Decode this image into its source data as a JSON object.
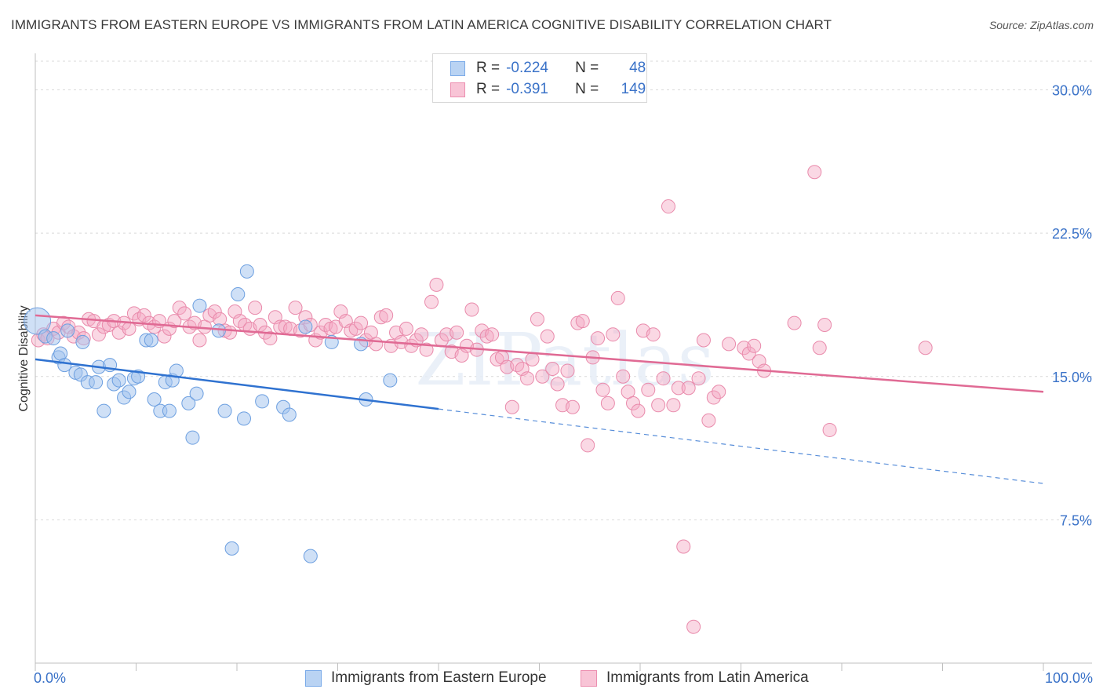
{
  "title": "IMMIGRANTS FROM EASTERN EUROPE VS IMMIGRANTS FROM LATIN AMERICA COGNITIVE DISABILITY CORRELATION CHART",
  "source": "Source: ZipAtlas.com",
  "watermark": "ZIPatlas",
  "legend": {
    "r_label": "R =",
    "n_label": "N =",
    "series": [
      {
        "r": "-0.224",
        "n": "48",
        "color": "#7aaae8",
        "fill": "#b9d3f3"
      },
      {
        "r": "-0.391",
        "n": "149",
        "color": "#ec8fb0",
        "fill": "#f8c4d6"
      }
    ]
  },
  "colors": {
    "blue_line": "#2f72d0",
    "pink_line": "#e06a94",
    "axis_text": "#3a72c8",
    "grid": "#d9d9d9"
  },
  "chart_data": {
    "type": "scatter",
    "xlabel": "",
    "ylabel": "Cognitive Disability",
    "xlim": [
      0,
      100
    ],
    "ylim": [
      0,
      31.5
    ],
    "x_tick_labels": [
      "0.0%",
      "100.0%"
    ],
    "y_ticks": [
      7.5,
      15.0,
      22.5,
      30.0
    ],
    "y_tick_labels": [
      "7.5%",
      "15.0%",
      "22.5%",
      "30.0%"
    ],
    "series": [
      {
        "name": "Immigrants from Eastern Europe",
        "trend": {
          "x": [
            0,
            40
          ],
          "y": [
            15.9,
            13.3
          ],
          "dashed_to_x": 100,
          "dashed_end_y": 9.4
        },
        "points": [
          [
            0.2,
            17.9
          ],
          [
            1.0,
            17.1
          ],
          [
            1.8,
            17.0
          ],
          [
            2.3,
            16.0
          ],
          [
            2.5,
            16.2
          ],
          [
            2.9,
            15.6
          ],
          [
            3.2,
            17.4
          ],
          [
            4.0,
            15.2
          ],
          [
            4.5,
            15.1
          ],
          [
            4.7,
            16.8
          ],
          [
            5.2,
            14.7
          ],
          [
            6.0,
            14.7
          ],
          [
            6.3,
            15.5
          ],
          [
            6.8,
            13.2
          ],
          [
            7.4,
            15.6
          ],
          [
            7.8,
            14.6
          ],
          [
            8.3,
            14.8
          ],
          [
            8.8,
            13.9
          ],
          [
            9.3,
            14.2
          ],
          [
            9.8,
            14.9
          ],
          [
            10.2,
            15.0
          ],
          [
            11.0,
            16.9
          ],
          [
            11.5,
            16.9
          ],
          [
            11.8,
            13.8
          ],
          [
            12.4,
            13.2
          ],
          [
            12.9,
            14.7
          ],
          [
            13.3,
            13.2
          ],
          [
            13.6,
            14.8
          ],
          [
            14.0,
            15.3
          ],
          [
            15.2,
            13.6
          ],
          [
            15.6,
            11.8
          ],
          [
            16.0,
            14.1
          ],
          [
            16.3,
            18.7
          ],
          [
            18.2,
            17.4
          ],
          [
            18.8,
            13.2
          ],
          [
            19.5,
            6.0
          ],
          [
            20.1,
            19.3
          ],
          [
            20.7,
            12.8
          ],
          [
            21.0,
            20.5
          ],
          [
            22.5,
            13.7
          ],
          [
            24.6,
            13.4
          ],
          [
            25.2,
            13.0
          ],
          [
            26.8,
            17.6
          ],
          [
            27.3,
            5.6
          ],
          [
            29.4,
            16.8
          ],
          [
            32.3,
            16.7
          ],
          [
            32.8,
            13.8
          ],
          [
            35.2,
            14.8
          ]
        ]
      },
      {
        "name": "Immigrants from Latin America",
        "trend": {
          "x": [
            0,
            100
          ],
          "y": [
            18.2,
            14.2
          ]
        },
        "points": [
          [
            0.3,
            16.9
          ],
          [
            0.8,
            17.2
          ],
          [
            1.2,
            17.0
          ],
          [
            1.8,
            17.5
          ],
          [
            2.3,
            17.3
          ],
          [
            2.8,
            17.8
          ],
          [
            3.3,
            17.6
          ],
          [
            3.8,
            17.1
          ],
          [
            4.3,
            17.3
          ],
          [
            4.8,
            17.0
          ],
          [
            5.3,
            18.0
          ],
          [
            5.8,
            17.9
          ],
          [
            6.3,
            17.2
          ],
          [
            6.8,
            17.6
          ],
          [
            7.3,
            17.7
          ],
          [
            7.8,
            17.9
          ],
          [
            8.3,
            17.3
          ],
          [
            8.8,
            17.8
          ],
          [
            9.3,
            17.5
          ],
          [
            9.8,
            18.3
          ],
          [
            10.3,
            18.0
          ],
          [
            10.8,
            18.2
          ],
          [
            11.3,
            17.8
          ],
          [
            11.8,
            17.6
          ],
          [
            12.3,
            17.9
          ],
          [
            12.8,
            17.1
          ],
          [
            13.3,
            17.5
          ],
          [
            13.8,
            17.9
          ],
          [
            14.3,
            18.6
          ],
          [
            14.8,
            18.3
          ],
          [
            15.3,
            17.6
          ],
          [
            15.8,
            17.8
          ],
          [
            16.3,
            16.9
          ],
          [
            16.8,
            17.6
          ],
          [
            17.3,
            18.2
          ],
          [
            17.8,
            18.4
          ],
          [
            18.3,
            18.0
          ],
          [
            18.8,
            17.4
          ],
          [
            19.3,
            17.3
          ],
          [
            19.8,
            18.4
          ],
          [
            20.3,
            17.9
          ],
          [
            20.8,
            17.7
          ],
          [
            21.3,
            17.5
          ],
          [
            21.8,
            18.6
          ],
          [
            22.3,
            17.7
          ],
          [
            22.8,
            17.3
          ],
          [
            23.3,
            17.0
          ],
          [
            23.8,
            18.1
          ],
          [
            24.3,
            17.6
          ],
          [
            24.8,
            17.6
          ],
          [
            25.3,
            17.5
          ],
          [
            25.8,
            18.6
          ],
          [
            26.3,
            17.4
          ],
          [
            26.8,
            18.1
          ],
          [
            27.3,
            17.7
          ],
          [
            27.8,
            16.9
          ],
          [
            28.3,
            17.3
          ],
          [
            28.8,
            17.7
          ],
          [
            29.3,
            17.5
          ],
          [
            29.8,
            17.6
          ],
          [
            30.3,
            18.4
          ],
          [
            30.8,
            17.9
          ],
          [
            31.3,
            17.4
          ],
          [
            31.8,
            17.5
          ],
          [
            32.3,
            17.8
          ],
          [
            32.8,
            16.9
          ],
          [
            33.3,
            17.3
          ],
          [
            33.8,
            16.7
          ],
          [
            34.3,
            18.1
          ],
          [
            34.8,
            18.2
          ],
          [
            35.3,
            16.6
          ],
          [
            35.8,
            17.3
          ],
          [
            36.3,
            16.8
          ],
          [
            36.8,
            17.5
          ],
          [
            37.3,
            16.6
          ],
          [
            37.8,
            16.9
          ],
          [
            38.3,
            17.2
          ],
          [
            38.8,
            16.4
          ],
          [
            39.3,
            18.9
          ],
          [
            39.8,
            19.8
          ],
          [
            40.3,
            16.9
          ],
          [
            40.8,
            17.2
          ],
          [
            41.3,
            16.3
          ],
          [
            41.8,
            17.3
          ],
          [
            42.3,
            16.1
          ],
          [
            42.8,
            16.6
          ],
          [
            43.3,
            18.5
          ],
          [
            43.8,
            16.4
          ],
          [
            44.3,
            17.4
          ],
          [
            44.8,
            17.1
          ],
          [
            45.3,
            17.2
          ],
          [
            45.8,
            15.9
          ],
          [
            46.3,
            16.0
          ],
          [
            46.8,
            15.5
          ],
          [
            47.3,
            13.4
          ],
          [
            47.8,
            15.6
          ],
          [
            48.3,
            15.4
          ],
          [
            48.8,
            14.9
          ],
          [
            49.3,
            15.9
          ],
          [
            49.8,
            18.0
          ],
          [
            50.3,
            15.0
          ],
          [
            50.8,
            17.1
          ],
          [
            51.3,
            15.4
          ],
          [
            51.8,
            14.6
          ],
          [
            52.3,
            13.5
          ],
          [
            52.8,
            15.3
          ],
          [
            53.3,
            13.4
          ],
          [
            53.8,
            17.8
          ],
          [
            54.3,
            17.9
          ],
          [
            54.8,
            11.4
          ],
          [
            55.3,
            16.0
          ],
          [
            55.8,
            17.0
          ],
          [
            56.3,
            14.3
          ],
          [
            56.8,
            13.6
          ],
          [
            57.3,
            17.2
          ],
          [
            57.8,
            19.1
          ],
          [
            58.3,
            15.0
          ],
          [
            58.8,
            14.2
          ],
          [
            59.3,
            13.6
          ],
          [
            59.8,
            13.2
          ],
          [
            60.3,
            17.4
          ],
          [
            60.8,
            14.3
          ],
          [
            61.3,
            17.2
          ],
          [
            61.8,
            13.5
          ],
          [
            62.3,
            14.9
          ],
          [
            62.8,
            23.9
          ],
          [
            63.3,
            13.5
          ],
          [
            63.8,
            14.4
          ],
          [
            64.3,
            6.1
          ],
          [
            64.8,
            14.4
          ],
          [
            65.3,
            1.9
          ],
          [
            65.8,
            14.9
          ],
          [
            66.3,
            16.9
          ],
          [
            66.8,
            12.7
          ],
          [
            67.3,
            13.9
          ],
          [
            67.8,
            14.2
          ],
          [
            68.8,
            16.7
          ],
          [
            70.3,
            16.5
          ],
          [
            70.8,
            16.2
          ],
          [
            71.3,
            16.6
          ],
          [
            71.8,
            15.8
          ],
          [
            72.3,
            15.3
          ],
          [
            75.3,
            17.8
          ],
          [
            77.3,
            25.7
          ],
          [
            77.8,
            16.5
          ],
          [
            78.3,
            17.7
          ],
          [
            78.8,
            12.2
          ],
          [
            88.3,
            16.5
          ]
        ]
      }
    ]
  },
  "bottom_legend": [
    {
      "label": "Immigrants from Eastern Europe"
    },
    {
      "label": "Immigrants from Latin America"
    }
  ]
}
